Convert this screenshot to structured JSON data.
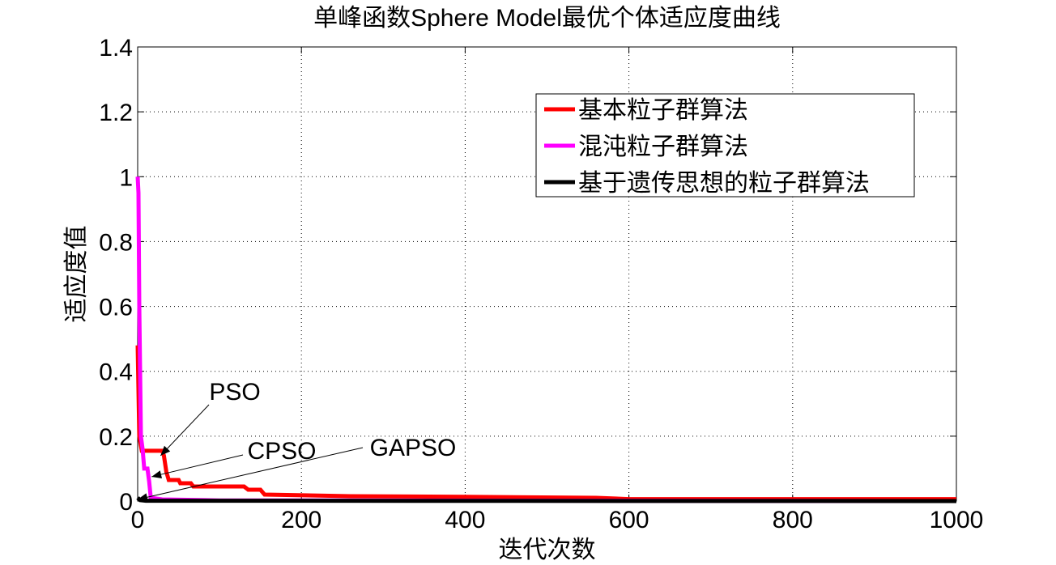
{
  "chart_data": {
    "type": "line",
    "title": "单峰函数Sphere Model最优个体适应度曲线",
    "xlabel": "迭代次数",
    "ylabel": "适应度值",
    "xlim": [
      0,
      1000
    ],
    "ylim": [
      0,
      1.4
    ],
    "xticks": [
      0,
      200,
      400,
      600,
      800,
      1000
    ],
    "xtick_labels": [
      "0",
      "200",
      "400",
      "600",
      "800",
      "1000"
    ],
    "yticks": [
      0,
      0.2,
      0.4,
      0.6,
      0.8,
      1,
      1.2,
      1.4
    ],
    "ytick_labels": [
      "0",
      "0.2",
      "0.4",
      "0.6",
      "0.8",
      "1",
      "1.2",
      "1.4"
    ],
    "grid": true,
    "legend_position": "top-right",
    "series": [
      {
        "name": "基本粒子群算法",
        "color": "#ff0000",
        "points": [
          [
            0,
            0.48
          ],
          [
            2,
            0.2
          ],
          [
            5,
            0.155
          ],
          [
            30,
            0.155
          ],
          [
            32,
            0.14
          ],
          [
            35,
            0.09
          ],
          [
            38,
            0.065
          ],
          [
            50,
            0.065
          ],
          [
            52,
            0.055
          ],
          [
            65,
            0.055
          ],
          [
            68,
            0.045
          ],
          [
            130,
            0.045
          ],
          [
            135,
            0.035
          ],
          [
            150,
            0.035
          ],
          [
            155,
            0.02
          ],
          [
            260,
            0.015
          ],
          [
            400,
            0.013
          ],
          [
            560,
            0.01
          ],
          [
            600,
            0.006
          ],
          [
            1000,
            0.006
          ]
        ]
      },
      {
        "name": "混沌粒子群算法",
        "color": "#ff00ff",
        "points": [
          [
            0,
            1.0
          ],
          [
            1,
            0.95
          ],
          [
            2,
            0.6
          ],
          [
            3,
            0.4
          ],
          [
            4,
            0.2
          ],
          [
            6,
            0.16
          ],
          [
            8,
            0.1
          ],
          [
            12,
            0.1
          ],
          [
            14,
            0.06
          ],
          [
            16,
            0.01
          ],
          [
            30,
            0.005
          ],
          [
            100,
            0.002
          ],
          [
            1000,
            0.0
          ]
        ]
      },
      {
        "name": "基于遗传思想的粒子群算法",
        "color": "#000000",
        "points": [
          [
            0,
            0.01
          ],
          [
            3,
            0.003
          ],
          [
            10,
            0.001
          ],
          [
            1000,
            0.0
          ]
        ]
      }
    ],
    "annotations": [
      {
        "text": "PSO",
        "tip": [
          28,
          0.14
        ]
      },
      {
        "text": "CPSO",
        "tip": [
          17,
          0.075
        ]
      },
      {
        "text": "GAPSO",
        "tip": [
          0,
          0.005
        ]
      }
    ]
  }
}
